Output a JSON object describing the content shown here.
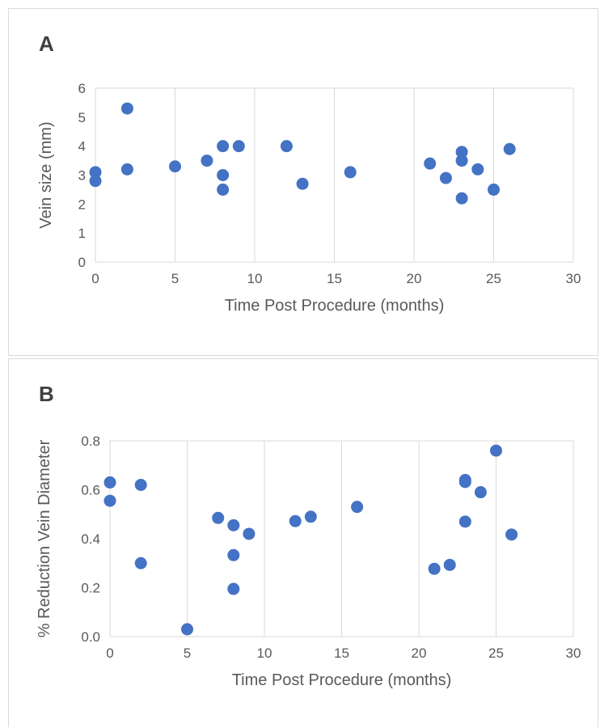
{
  "chart_data": [
    {
      "type": "scatter",
      "panel_label": "A",
      "xlabel": "Time Post Procedure (months)",
      "ylabel": "Vein size (mm)",
      "xlim": [
        0,
        30
      ],
      "ylim": [
        0,
        6
      ],
      "x_ticks": [
        0,
        5,
        10,
        15,
        20,
        25,
        30
      ],
      "y_ticks": [
        0,
        1,
        2,
        3,
        4,
        5,
        6
      ],
      "y_tick_format": 0,
      "grid": "vertical",
      "marker_color": "#4472C4",
      "points": [
        [
          0,
          3.1
        ],
        [
          0,
          2.8
        ],
        [
          2,
          5.3
        ],
        [
          2,
          3.2
        ],
        [
          5,
          3.3
        ],
        [
          7,
          3.5
        ],
        [
          8,
          4.0
        ],
        [
          8,
          3.0
        ],
        [
          8,
          2.5
        ],
        [
          9,
          4.0
        ],
        [
          12,
          4.0
        ],
        [
          13,
          2.7
        ],
        [
          16,
          3.1
        ],
        [
          21,
          3.4
        ],
        [
          22,
          2.9
        ],
        [
          23,
          3.8
        ],
        [
          23,
          3.5
        ],
        [
          23,
          2.2
        ],
        [
          24,
          3.2
        ],
        [
          25,
          2.5
        ],
        [
          26,
          3.9
        ]
      ]
    },
    {
      "type": "scatter",
      "panel_label": "B",
      "xlabel": "Time Post Procedure (months)",
      "ylabel": "% Reduction Vein Diameter",
      "xlim": [
        0,
        30
      ],
      "ylim": [
        0,
        0.8
      ],
      "x_ticks": [
        0,
        5,
        10,
        15,
        20,
        25,
        30
      ],
      "y_ticks": [
        0,
        0.2,
        0.4,
        0.6,
        0.8
      ],
      "y_tick_format": 1,
      "grid": "vertical",
      "marker_color": "#4472C4",
      "points": [
        [
          0,
          0.63
        ],
        [
          0,
          0.555
        ],
        [
          2,
          0.62
        ],
        [
          2,
          0.3
        ],
        [
          5,
          0.03
        ],
        [
          7,
          0.485
        ],
        [
          8,
          0.455
        ],
        [
          8,
          0.333
        ],
        [
          8,
          0.195
        ],
        [
          9,
          0.42
        ],
        [
          12,
          0.472
        ],
        [
          13,
          0.49
        ],
        [
          16,
          0.53
        ],
        [
          21,
          0.277
        ],
        [
          22,
          0.293
        ],
        [
          23,
          0.64
        ],
        [
          23,
          0.632
        ],
        [
          23,
          0.47
        ],
        [
          24,
          0.59
        ],
        [
          25,
          0.76
        ],
        [
          26,
          0.417
        ]
      ]
    }
  ]
}
